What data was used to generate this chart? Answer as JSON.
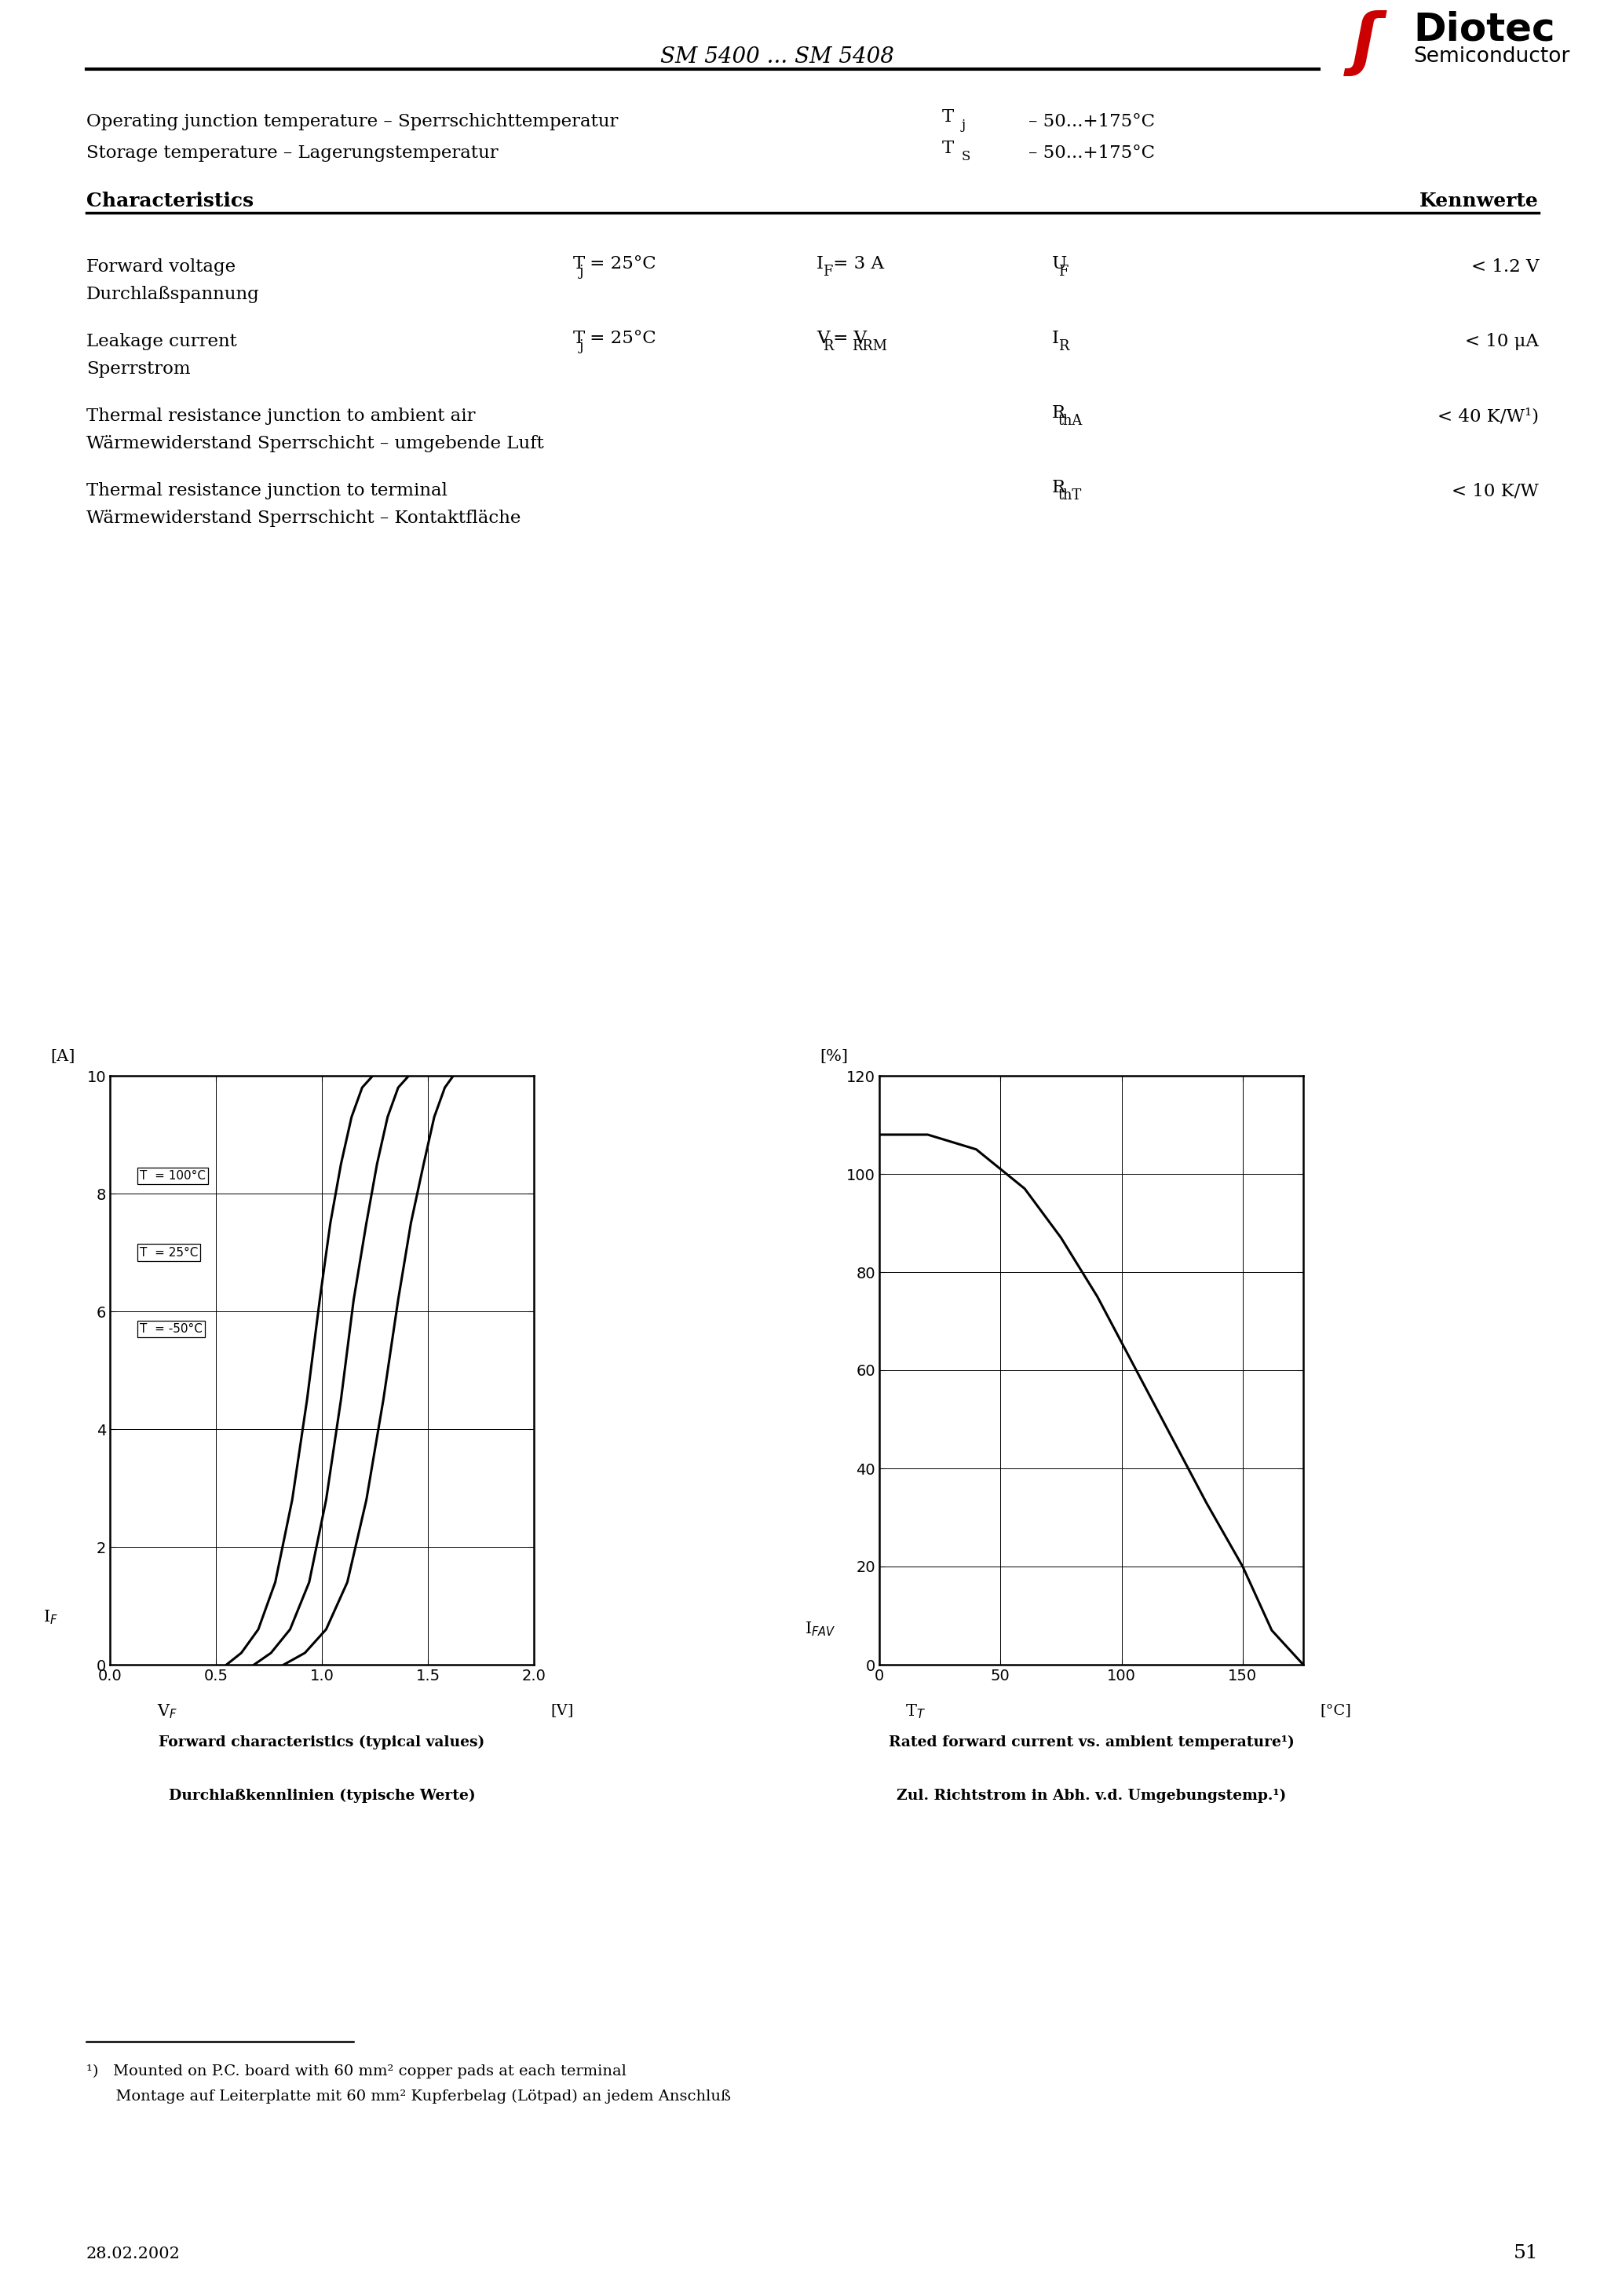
{
  "page_title": "SM 5400 ... SM 5408",
  "bg_color": "#ffffff",
  "temp_rows": [
    {
      "english": "Operating junction temperature – Sperrschichttemperatur",
      "symbol": "T",
      "symbol_sub": "j",
      "value": "– 50...+175°C"
    },
    {
      "english": "Storage temperature – Lagerungstemperatur",
      "symbol": "T",
      "symbol_sub": "S",
      "value": "– 50...+175°C"
    }
  ],
  "char_title_en": "Characteristics",
  "char_title_de": "Kennwerte",
  "char_rows": [
    {
      "english": "Forward voltage",
      "german": "Durchlaßspannung",
      "cond1_main": "T",
      "cond1_sub": "j",
      "cond1_rest": " = 25°C",
      "cond2_main": "I",
      "cond2_sub": "F",
      "cond2_rest": " = 3 A",
      "symbol_main": "U",
      "symbol_sub": "F",
      "value": "< 1.2 V"
    },
    {
      "english": "Leakage current",
      "german": "Sperrstrom",
      "cond1_main": "T",
      "cond1_sub": "j",
      "cond1_rest": " = 25°C",
      "cond2_main": "V",
      "cond2_sub": "R",
      "cond2_rest": " = V",
      "cond2_sub2": "RRM",
      "symbol_main": "I",
      "symbol_sub": "R",
      "value": "< 10 μA"
    },
    {
      "english": "Thermal resistance junction to ambient air",
      "german": "Wärmewiderstand Sperrschicht – umgebende Luft",
      "cond1_main": "",
      "cond1_sub": "",
      "cond1_rest": "",
      "cond2_main": "",
      "cond2_sub": "",
      "cond2_rest": "",
      "symbol_main": "R",
      "symbol_sub": "thA",
      "value": "< 40 K/W¹)"
    },
    {
      "english": "Thermal resistance junction to terminal",
      "german": "Wärmewiderstand Sperrschicht – Kontaktfläche",
      "cond1_main": "",
      "cond1_sub": "",
      "cond1_rest": "",
      "cond2_main": "",
      "cond2_sub": "",
      "cond2_rest": "",
      "symbol_main": "R",
      "symbol_sub": "thT",
      "value": "< 10 K/W"
    }
  ],
  "graph1": {
    "title_en": "Forward characteristics (typical values)",
    "title_de": "Durchlaßkennlinien (typische Werte)",
    "xlim": [
      0,
      2
    ],
    "ylim": [
      0,
      10
    ],
    "xticks": [
      0,
      0.5,
      1,
      1.5,
      2
    ],
    "yticks": [
      0,
      2,
      4,
      6,
      8,
      10
    ],
    "curve_labels": [
      "T  = 100°C",
      "T  = 25°C",
      "T  = -50°C"
    ],
    "curve_label_sub": "j",
    "curves": [
      {
        "x": [
          0.55,
          0.62,
          0.7,
          0.78,
          0.86,
          0.93,
          0.99,
          1.04,
          1.09,
          1.14,
          1.19,
          1.24
        ],
        "y": [
          0.0,
          0.2,
          0.6,
          1.4,
          2.8,
          4.5,
          6.2,
          7.5,
          8.5,
          9.3,
          9.8,
          10.0
        ]
      },
      {
        "x": [
          0.68,
          0.76,
          0.85,
          0.94,
          1.02,
          1.09,
          1.15,
          1.21,
          1.26,
          1.31,
          1.36,
          1.41
        ],
        "y": [
          0.0,
          0.2,
          0.6,
          1.4,
          2.8,
          4.5,
          6.2,
          7.5,
          8.5,
          9.3,
          9.8,
          10.0
        ]
      },
      {
        "x": [
          0.82,
          0.92,
          1.02,
          1.12,
          1.21,
          1.29,
          1.36,
          1.42,
          1.48,
          1.53,
          1.58,
          1.62
        ],
        "y": [
          0.0,
          0.2,
          0.6,
          1.4,
          2.8,
          4.5,
          6.2,
          7.5,
          8.5,
          9.3,
          9.8,
          10.0
        ]
      }
    ]
  },
  "graph2": {
    "title_en": "Rated forward current vs. ambient temperature¹)",
    "title_de": "Zul. Richtstrom in Abh. v.d. Umgebungstemp.¹)",
    "xlim": [
      0,
      175
    ],
    "ylim": [
      0,
      120
    ],
    "xticks": [
      0,
      50,
      100,
      150
    ],
    "yticks": [
      0,
      20,
      40,
      60,
      80,
      100,
      120
    ],
    "curve_x": [
      0,
      20,
      40,
      60,
      75,
      90,
      105,
      120,
      135,
      150,
      162,
      175
    ],
    "curve_y": [
      108,
      108,
      105,
      97,
      87,
      75,
      61,
      47,
      33,
      20,
      7,
      0
    ]
  },
  "footnote1": "¹)   Mounted on P.C. board with 60 mm² copper pads at each terminal",
  "footnote2": "      Montage auf Leiterplatte mit 60 mm² Kupferbelag (Lötpad) an jedem Anschluß",
  "date": "28.02.2002",
  "page_num": "51",
  "diotec_text": "Diotec",
  "semiconductor_text": "Semiconductor"
}
